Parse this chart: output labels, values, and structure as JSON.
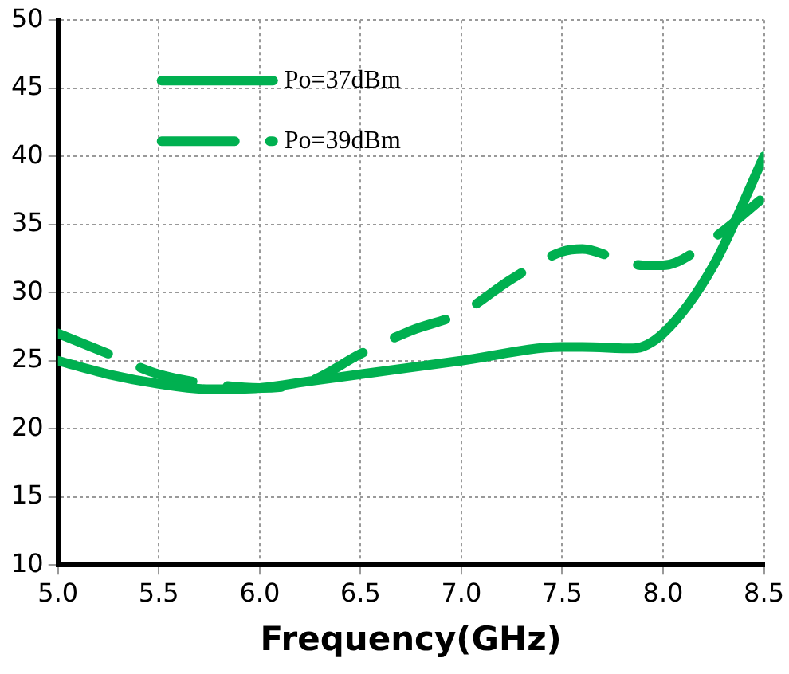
{
  "chart_data": {
    "type": "line",
    "xlabel": "Frequency(GHz)",
    "xlim": [
      5.0,
      8.5
    ],
    "xticks": [
      {
        "value": 5,
        "label": "5.0"
      },
      5.5,
      {
        "value": 6,
        "label": "6.0"
      },
      6.5,
      {
        "value": 7,
        "label": "7.0"
      },
      7.5,
      {
        "value": 8,
        "label": "8.0"
      },
      8.5
    ],
    "ylim": [
      10,
      50
    ],
    "yticks": [
      10,
      15,
      20,
      25,
      30,
      35,
      40,
      45,
      50
    ],
    "grid": true,
    "legend": "top left",
    "marker": "none",
    "series": [
      {
        "name": "Po=37dBm",
        "color": "#00b050",
        "line_style": "solid",
        "x": [
          5.0,
          5.25,
          5.5,
          5.75,
          6.0,
          6.25,
          6.5,
          7.0,
          7.5,
          7.6,
          7.85,
          8.0,
          8.25,
          8.5
        ],
        "values": [
          25,
          24,
          23.3,
          22.9,
          23,
          23.5,
          24,
          25,
          26,
          26,
          25.9,
          27,
          32,
          40
        ]
      },
      {
        "name": "Po=39dBm",
        "color": "#00b050",
        "line_style": "dashed",
        "x": [
          5.0,
          5.25,
          5.5,
          5.75,
          6.0,
          6.25,
          6.5,
          6.75,
          7.0,
          7.25,
          7.5,
          7.6,
          7.75,
          7.9,
          8.0,
          8.25,
          8.5
        ],
        "values": [
          27,
          25.5,
          24,
          23.3,
          23,
          23.5,
          25.5,
          27.2,
          28.5,
          31,
          33,
          33.2,
          32.6,
          32,
          32,
          34,
          37
        ]
      }
    ]
  }
}
